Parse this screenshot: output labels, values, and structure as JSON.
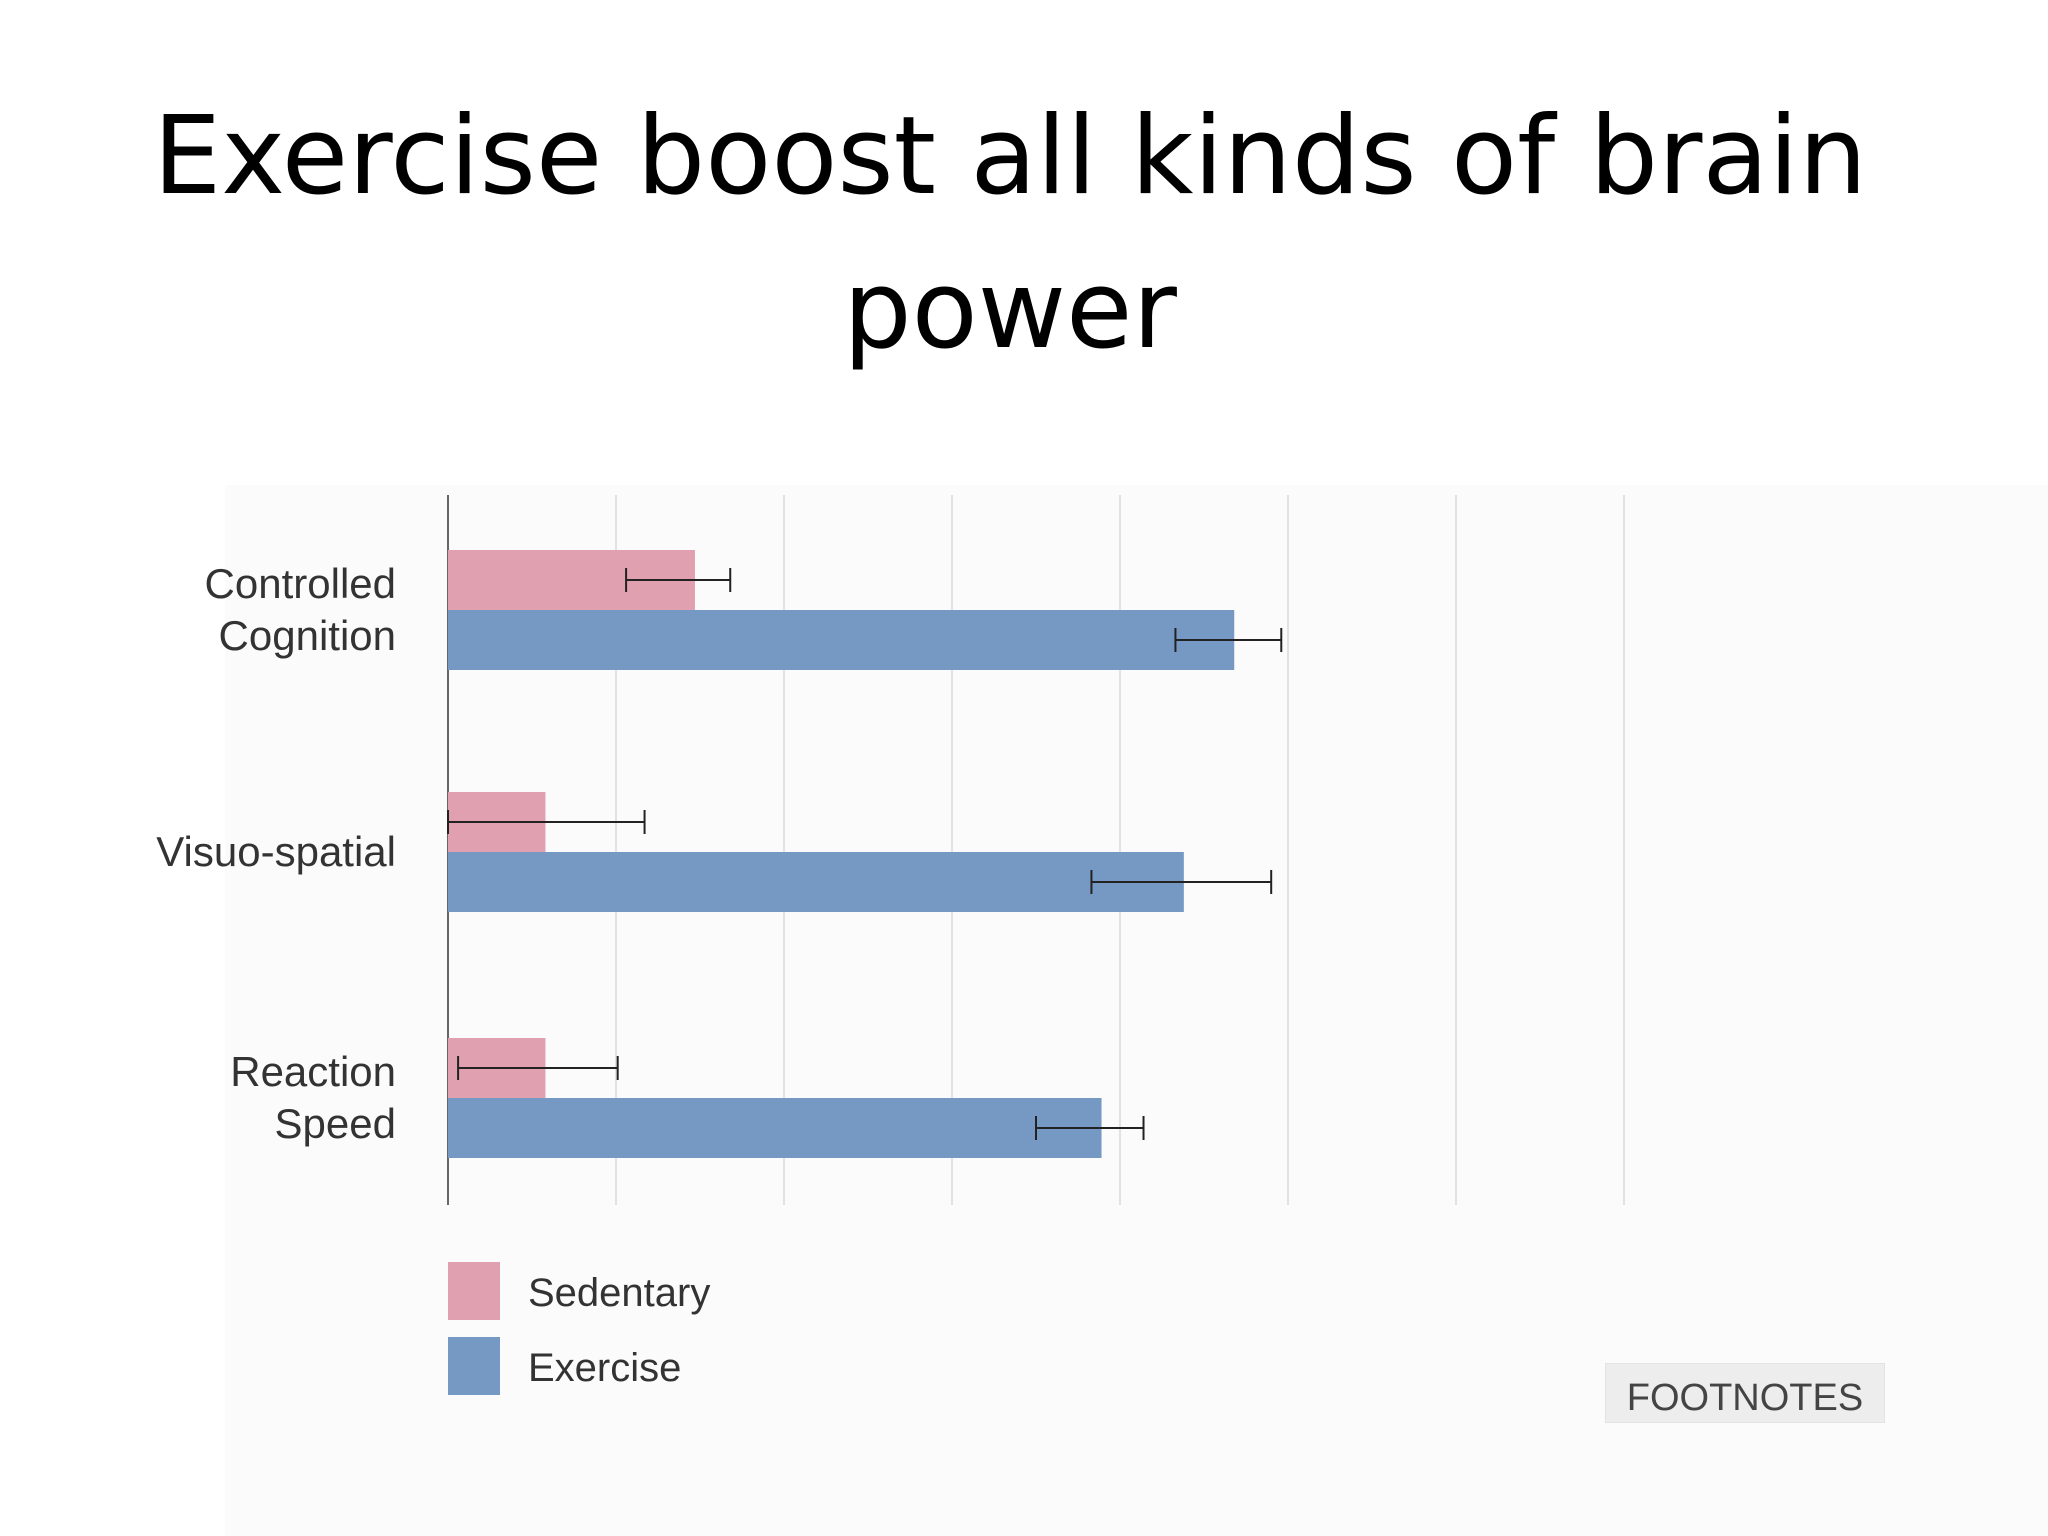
{
  "slide": {
    "title": "Exercise boost all kinds of brain power"
  },
  "footnotes_label": "FOOTNOTES",
  "chart_data": {
    "type": "bar",
    "orientation": "horizontal",
    "categories": [
      "Controlled Cognition",
      "Visuo-spatial",
      "Reaction Speed"
    ],
    "category_lines": [
      [
        "Controlled",
        "Cognition"
      ],
      [
        "Visuo-spatial"
      ],
      [
        "Reaction",
        "Speed"
      ]
    ],
    "series": [
      {
        "name": "Sedentary",
        "color": "#e0a0b0",
        "values": [
          1.47,
          0.58,
          0.58
        ],
        "error_low": [
          1.06,
          0.0,
          0.06
        ],
        "error_high": [
          1.68,
          1.17,
          1.01
        ]
      },
      {
        "name": "Exercise",
        "color": "#7699c4",
        "values": [
          4.68,
          4.38,
          3.89
        ],
        "error_low": [
          4.33,
          3.83,
          3.5
        ],
        "error_high": [
          4.96,
          4.9,
          4.14
        ]
      }
    ],
    "xlim": [
      0,
      7
    ],
    "grid": true,
    "legend": "bottom-left",
    "title": "",
    "xlabel": "",
    "ylabel": ""
  }
}
